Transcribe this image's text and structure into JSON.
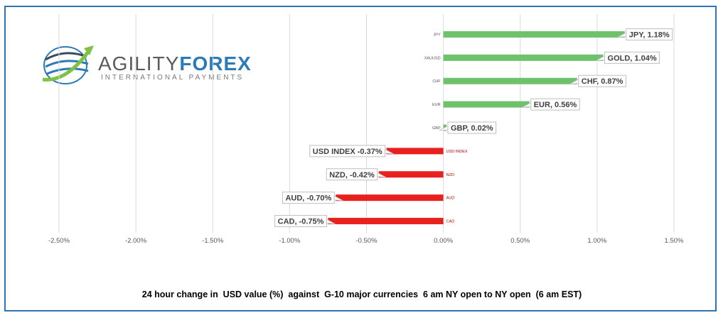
{
  "logo": {
    "word_a": "AGILITY",
    "word_b": "FOREX",
    "subtitle": "INTERNATIONAL PAYMENTS"
  },
  "caption": "24 hour change in  USD value (%)  against  G-10 major currencies  6 am NY open to NY open  (6 am EST)",
  "colors": {
    "positive": "#70c16b",
    "negative": "#e8201e",
    "grid": "#d9d9d9",
    "axis_text": "#595959",
    "frame": "#2e75b6"
  },
  "chart_data": {
    "type": "bar",
    "orientation": "horizontal",
    "categories": [
      "JPY",
      "XAUUSD",
      "CHF",
      "EUR",
      "GBP",
      "USD INDEX",
      "NZD",
      "AUD",
      "CAD"
    ],
    "values": [
      1.18,
      1.04,
      0.87,
      0.56,
      0.02,
      -0.37,
      -0.42,
      -0.7,
      -0.75
    ],
    "data_labels": [
      "JPY, 1.18%",
      "GOLD, 1.04%",
      "CHF, 0.87%",
      "EUR, 0.56%",
      "GBP, 0.02%",
      "USD INDEX -0.37%",
      "NZD, -0.42%",
      "AUD, -0.70%",
      "CAD, -0.75%"
    ],
    "xlim": [
      -2.5,
      1.5
    ],
    "x_ticks": [
      -2.5,
      -2.0,
      -1.5,
      -1.0,
      -0.5,
      0.0,
      0.5,
      1.0,
      1.5
    ],
    "x_tick_labels": [
      "-2.50%",
      "-2.00%",
      "-1.50%",
      "-1.00%",
      "-0.50%",
      "0.00%",
      "0.50%",
      "1.00%",
      "1.50%"
    ],
    "grid": true,
    "xlabel": "",
    "ylabel": ""
  }
}
